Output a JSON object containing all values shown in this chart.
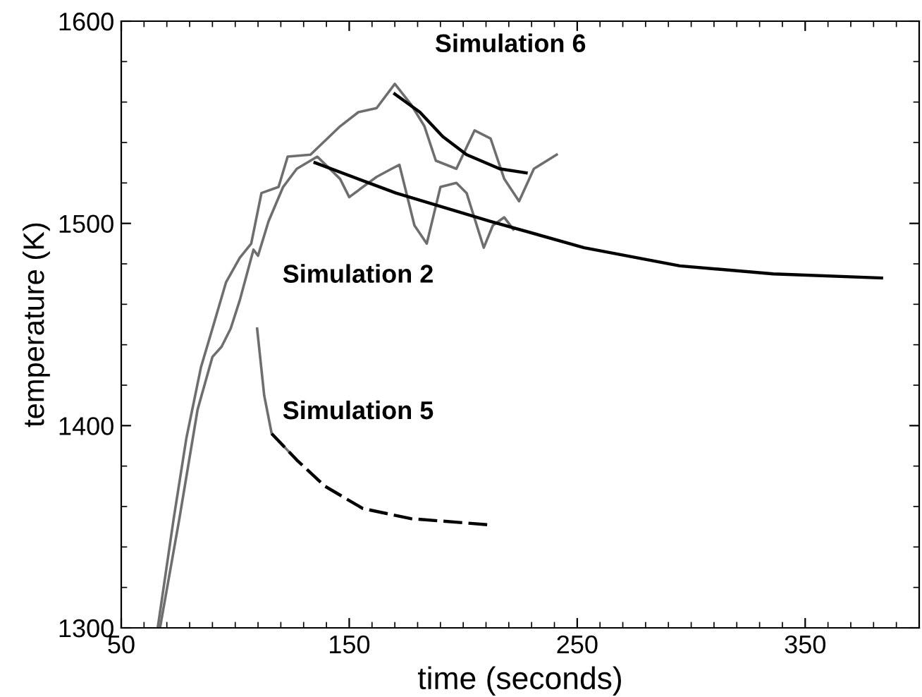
{
  "chart_data": {
    "type": "line",
    "xlabel": "time (seconds)",
    "ylabel": "temperature (K)",
    "xlim": [
      50,
      400
    ],
    "ylim": [
      1300,
      1600
    ],
    "xticks": [
      50,
      150,
      250,
      350
    ],
    "yticks": [
      1300,
      1400,
      1500,
      1600
    ],
    "grid": false,
    "legend": false,
    "marker": "none",
    "series": [
      {
        "color": "#6e6e6e",
        "line_style": "solid",
        "x": [
          66,
          73,
          78.6,
          85,
          90,
          96,
          102,
          107,
          111.5,
          119,
          123,
          133,
          146,
          154,
          162,
          170,
          177,
          183,
          188,
          197,
          205,
          212,
          218,
          224.5,
          231,
          241
        ],
        "values": [
          1300,
          1354,
          1394,
          1429,
          1448,
          1471,
          1483,
          1490,
          1515,
          1518,
          1533,
          1534,
          1548,
          1555,
          1557,
          1569,
          1559,
          1548,
          1531,
          1527,
          1546,
          1542,
          1522,
          1511,
          1527,
          1534
        ]
      },
      {
        "color": "#6e6e6e",
        "line_style": "solid",
        "x": [
          67,
          75.5,
          83.5,
          90,
          94,
          98,
          102,
          108,
          110,
          114.6,
          121,
          127,
          136,
          146,
          150,
          156,
          162,
          168.6,
          172,
          178.6,
          184,
          190,
          197,
          201.5,
          209,
          213,
          218,
          222
        ],
        "values": [
          1300,
          1354,
          1408,
          1434,
          1439,
          1448,
          1462,
          1487,
          1484,
          1501,
          1518,
          1527,
          1533,
          1522,
          1513,
          1518,
          1523,
          1527,
          1529,
          1499,
          1490,
          1518,
          1520,
          1515,
          1488,
          1499,
          1503,
          1497
        ]
      },
      {
        "color": "#6e6e6e",
        "line_style": "solid",
        "x": [
          109.6,
          112.7,
          116,
          127
        ],
        "values": [
          1448,
          1415,
          1396,
          1383
        ]
      },
      {
        "color": "#000000",
        "line_style": "solid",
        "x": [
          170,
          181,
          191,
          201.5,
          216,
          227.6
        ],
        "values": [
          1564,
          1555,
          1543,
          1534,
          1527,
          1525
        ]
      },
      {
        "color": "#000000",
        "line_style": "solid",
        "x": [
          135,
          170.5,
          212,
          253,
          295,
          336,
          383.5
        ],
        "values": [
          1530,
          1515,
          1501,
          1488,
          1479,
          1475,
          1473
        ]
      },
      {
        "color": "#000000",
        "line_style": "dashed",
        "x": [
          116,
          127,
          139.4,
          156,
          177,
          211
        ],
        "values": [
          1396,
          1383,
          1370,
          1359,
          1354,
          1351
        ]
      }
    ],
    "annotations": [
      "Simulation 6",
      "Simulation 2",
      "Simulation 5"
    ]
  }
}
